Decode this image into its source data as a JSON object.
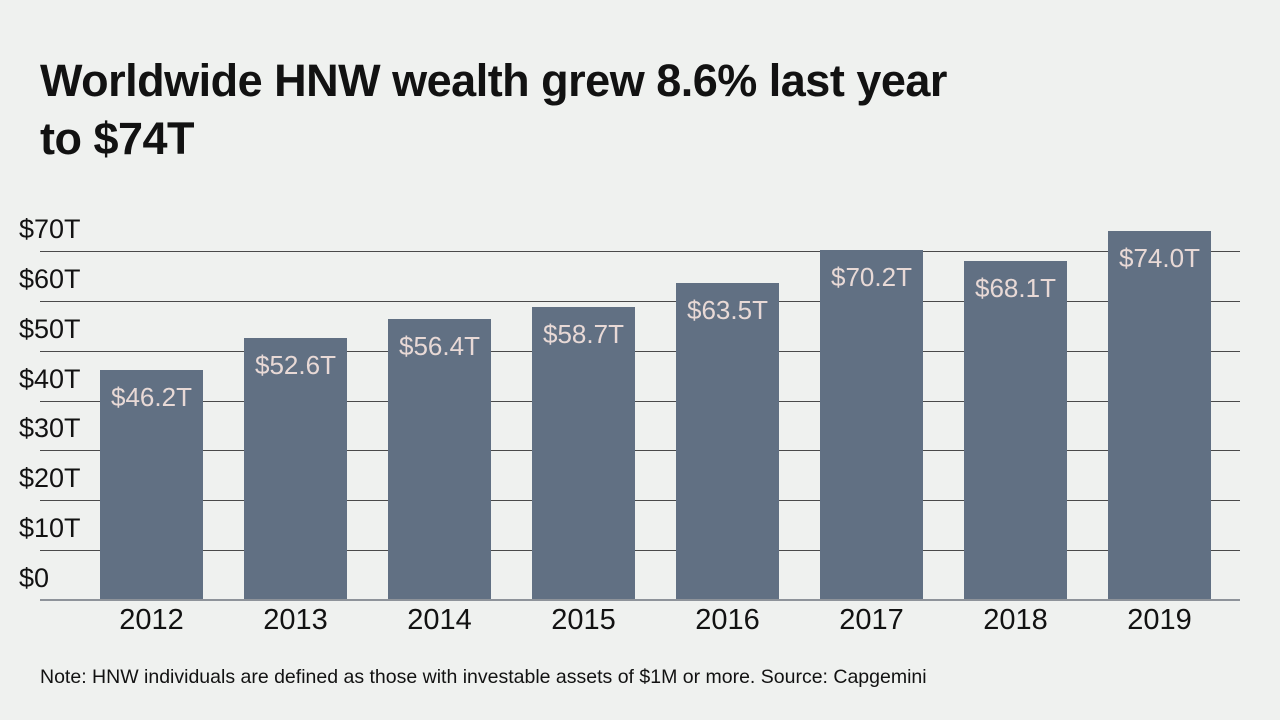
{
  "title": {
    "line1": "Worldwide HNW wealth grew 8.6% last year",
    "line2": "to $74T"
  },
  "note": "Note: HNW individuals are defined as those with investable assets of $1M or more. Source: Capgemini",
  "chart_data": {
    "type": "bar",
    "title": "Worldwide HNW wealth grew 8.6% last year to $74T",
    "categories": [
      "2012",
      "2013",
      "2014",
      "2015",
      "2016",
      "2017",
      "2018",
      "2019"
    ],
    "values": [
      46.2,
      52.6,
      56.4,
      58.7,
      63.5,
      70.2,
      68.1,
      74.0
    ],
    "value_labels": [
      "$46.2T",
      "$52.6T",
      "$56.4T",
      "$58.7T",
      "$63.5T",
      "$70.2T",
      "$68.1T",
      "$74.0T"
    ],
    "xlabel": "",
    "ylabel": "",
    "ylim": [
      0,
      74
    ],
    "y_ticks": [
      {
        "value": 0,
        "label": "$0"
      },
      {
        "value": 10,
        "label": "$10T"
      },
      {
        "value": 20,
        "label": "$20T"
      },
      {
        "value": 30,
        "label": "$30T"
      },
      {
        "value": 40,
        "label": "$40T"
      },
      {
        "value": 50,
        "label": "$50T"
      },
      {
        "value": 60,
        "label": "$60T"
      },
      {
        "value": 70,
        "label": "$70T"
      }
    ],
    "grid": "horizontal",
    "legend": "none",
    "colors": {
      "background": "#eff1ef",
      "bar": "#617083",
      "bar_value_label": "#e8d9d6",
      "gridline": "#4a4a4a",
      "baseline": "#8e939a",
      "text": "#121212"
    }
  }
}
